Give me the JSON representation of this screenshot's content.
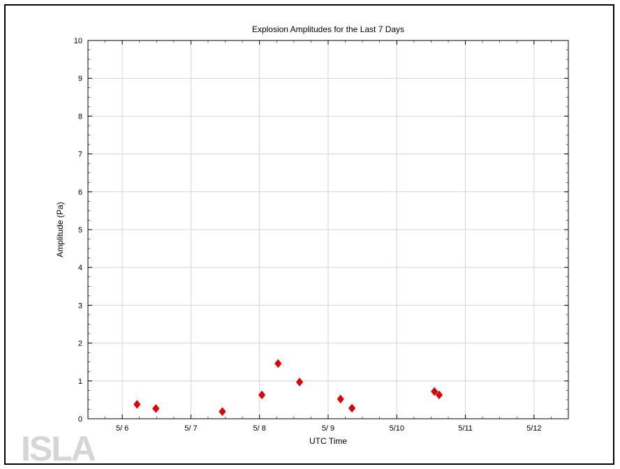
{
  "chart_data": {
    "type": "scatter",
    "title": "Explosion Amplitudes for the Last 7 Days",
    "xlabel": "UTC Time",
    "ylabel": "Amplitude (Pa)",
    "xlim": [
      "2023-05-05T12:00",
      "2023-05-12T12:00"
    ],
    "ylim": [
      0,
      10
    ],
    "x_ticks": [
      "2023-05-06T00:00",
      "2023-05-07T00:00",
      "2023-05-08T00:00",
      "2023-05-09T00:00",
      "2023-05-10T00:00",
      "2023-05-11T00:00",
      "2023-05-12T00:00"
    ],
    "x_tick_labels": [
      "5/ 6",
      "5/ 7",
      "5/ 8",
      "5/ 9",
      "5/10",
      "5/11",
      "5/12"
    ],
    "y_ticks": [
      0,
      1,
      2,
      3,
      4,
      5,
      6,
      7,
      8,
      9,
      10
    ],
    "y_tick_labels": [
      "0",
      "1",
      "2",
      "3",
      "4",
      "5",
      "6",
      "7",
      "8",
      "9",
      "10"
    ],
    "grid": true,
    "marker": "diamond",
    "marker_color": "#e00000",
    "points": [
      {
        "x": "2023-05-06T05:10",
        "y": 0.38
      },
      {
        "x": "2023-05-06T11:45",
        "y": 0.27
      },
      {
        "x": "2023-05-07T11:00",
        "y": 0.19
      },
      {
        "x": "2023-05-08T00:50",
        "y": 0.63
      },
      {
        "x": "2023-05-08T06:30",
        "y": 1.46
      },
      {
        "x": "2023-05-08T14:00",
        "y": 0.97
      },
      {
        "x": "2023-05-09T04:20",
        "y": 0.52
      },
      {
        "x": "2023-05-09T08:20",
        "y": 0.28
      },
      {
        "x": "2023-05-10T13:10",
        "y": 0.72
      },
      {
        "x": "2023-05-10T14:50",
        "y": 0.63
      }
    ]
  },
  "logo": {
    "text": "ISLA"
  }
}
